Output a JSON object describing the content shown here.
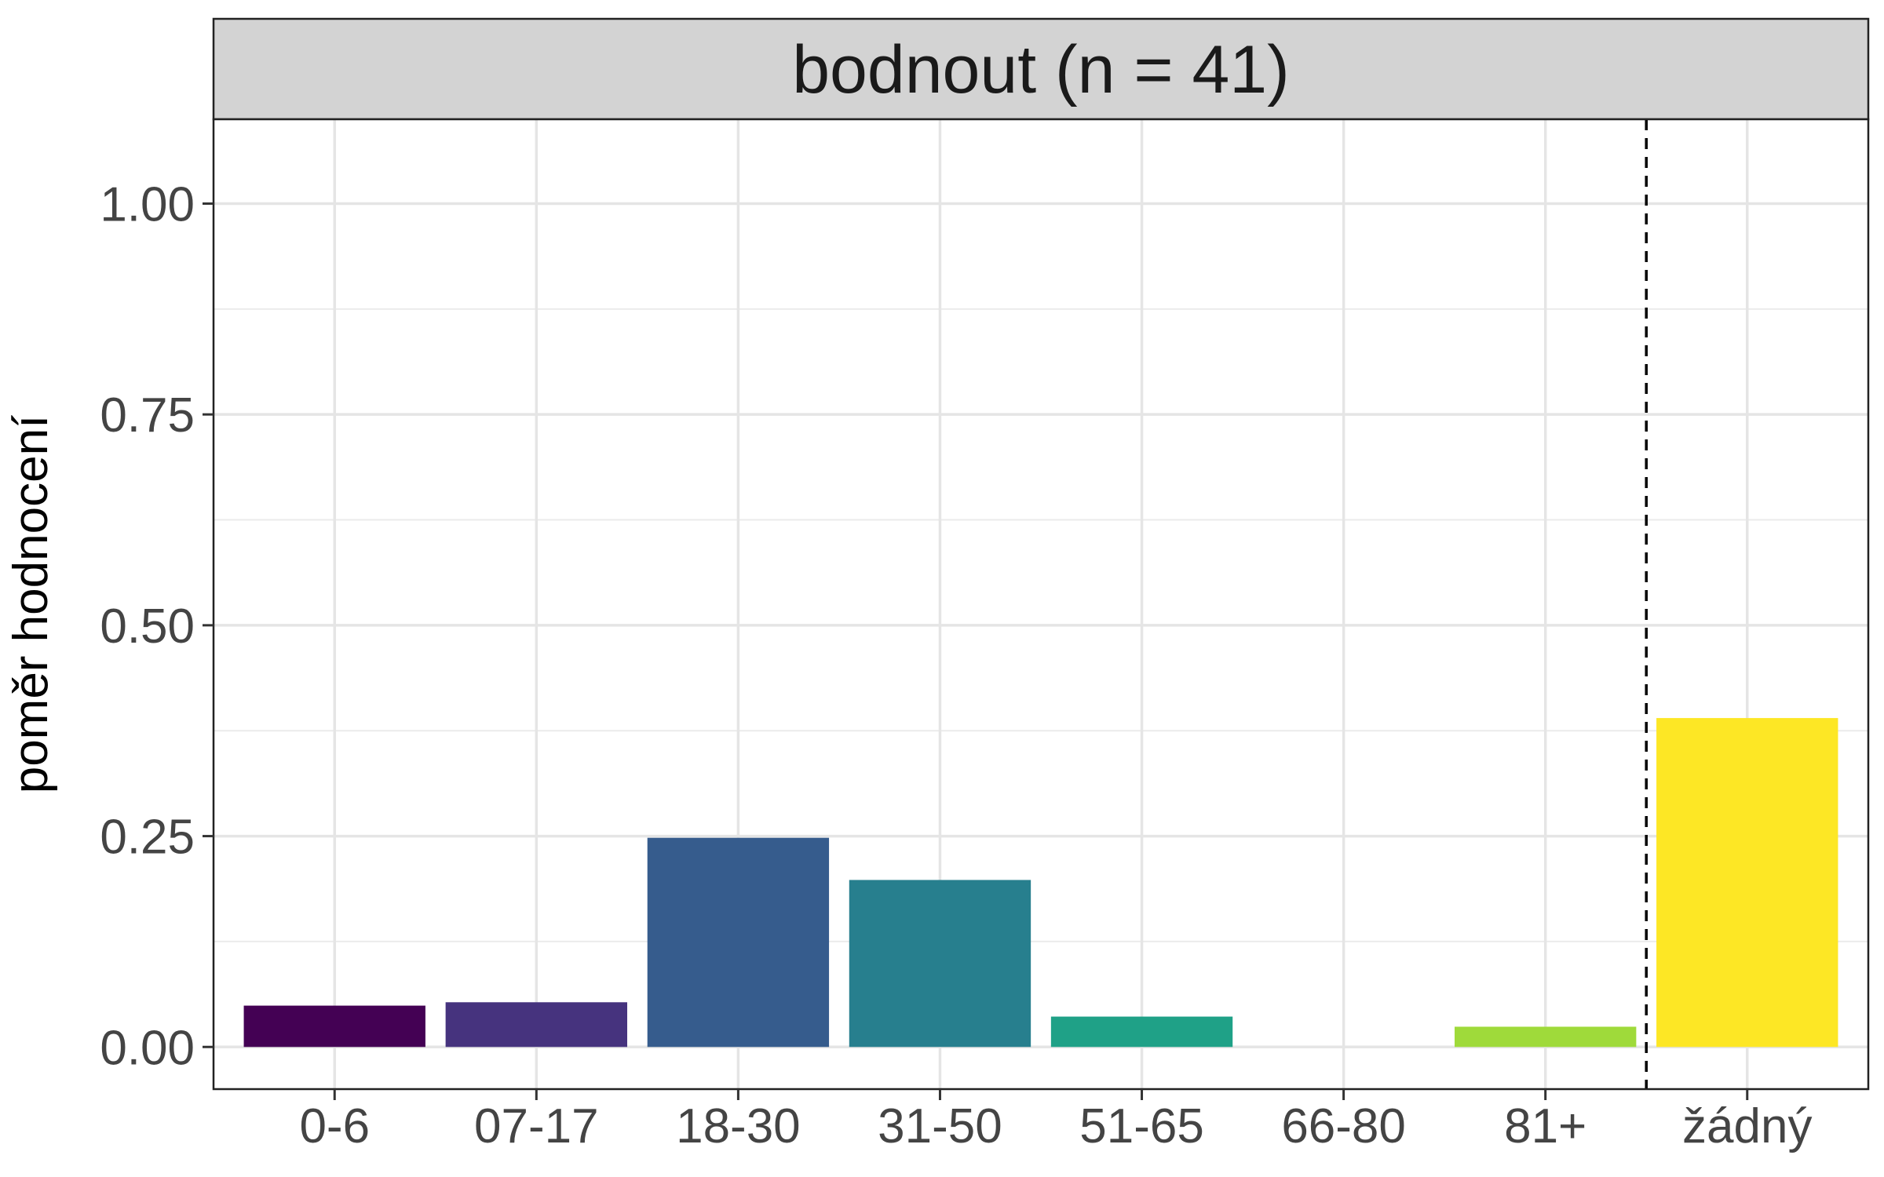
{
  "chart_data": {
    "type": "bar",
    "title": "bodnout (n = 41)",
    "xlabel": "",
    "ylabel": "poměr hodnocení",
    "categories": [
      "0-6",
      "07-17",
      "18-30",
      "31-50",
      "51-65",
      "66-80",
      "81+",
      "žádný"
    ],
    "values": [
      0.049,
      0.053,
      0.248,
      0.198,
      0.036,
      0.0,
      0.024,
      0.39
    ],
    "colors": [
      "#440154",
      "#46337E",
      "#365C8D",
      "#277F8E",
      "#1FA187",
      "#4AC16D",
      "#9FDA3A",
      "#FDE725"
    ],
    "ylim": [
      -0.05,
      1.1
    ],
    "yticks": [
      0.0,
      0.25,
      0.5,
      0.75,
      1.0
    ],
    "ytick_labels": [
      "0.00",
      "0.25",
      "0.50",
      "0.75",
      "1.00"
    ],
    "reference_line": {
      "style": "dashed",
      "between": [
        "81+",
        "žádný"
      ]
    },
    "grid": true,
    "legend": "none"
  }
}
